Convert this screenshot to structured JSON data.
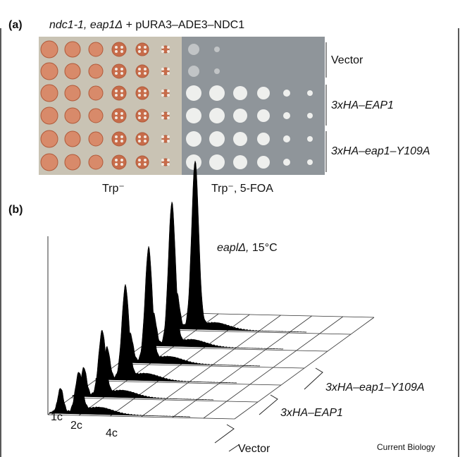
{
  "panel_a": {
    "label": "(a)",
    "title_italic": "ndc1-1, eap1Δ",
    "title_rest": "+ pURA3–ADE3–NDC1",
    "plate_labels": [
      "Trp⁻",
      "Trp⁻, 5-FOA"
    ],
    "row_labels": [
      "Vector",
      "3xHA–EAP1",
      "3xHA–eap1–Y109A"
    ]
  },
  "panel_b": {
    "label": "(b)",
    "condition_italic": "eaplΔ,",
    "condition_rest": "15°C",
    "dna_labels": [
      "1c",
      "2c",
      "4c"
    ],
    "series_labels": [
      "3xHA–eap1–Y109A",
      "3xHA–EAP1",
      "Vector"
    ]
  },
  "footer": "Current Biology"
}
